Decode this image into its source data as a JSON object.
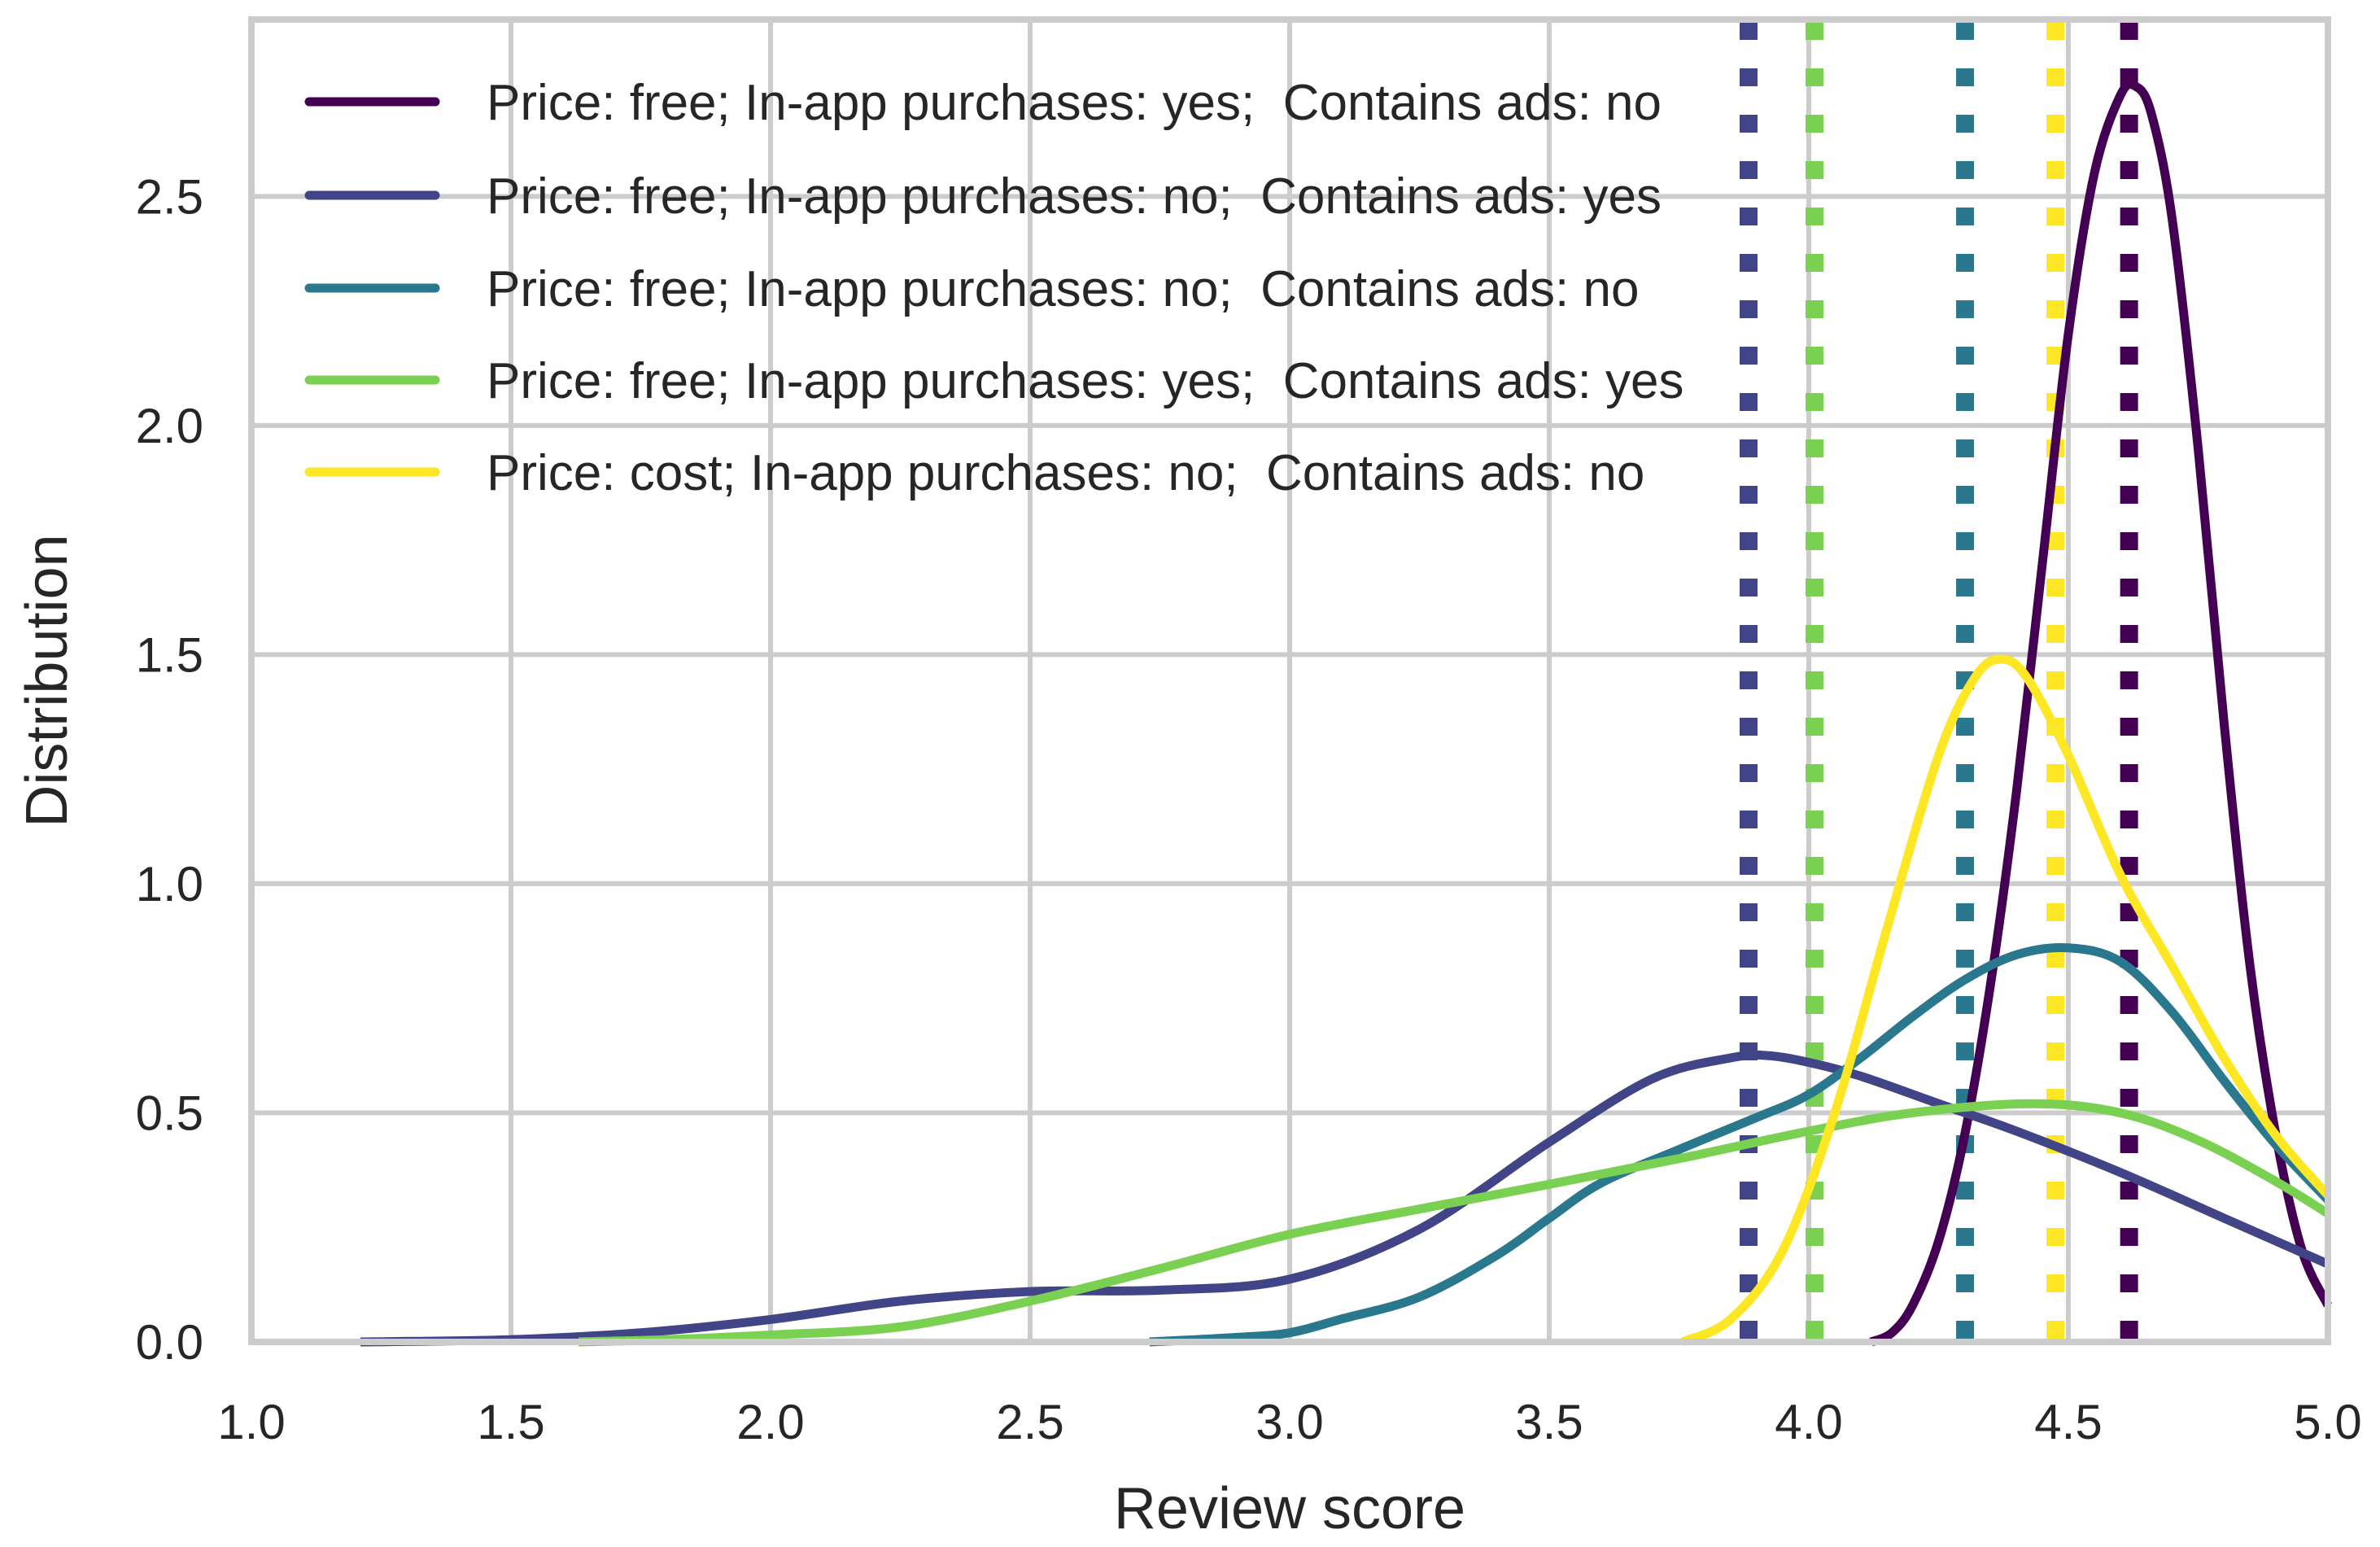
{
  "chart_data": {
    "type": "line",
    "title": "",
    "xlabel": "Review score",
    "ylabel": "Distribution",
    "xlim": [
      1.0,
      5.0
    ],
    "ylim": [
      0.0,
      2.886
    ],
    "xticks": [
      1.0,
      1.5,
      2.0,
      2.5,
      3.0,
      3.5,
      4.0,
      4.5,
      5.0
    ],
    "xtick_labels": [
      "1.0",
      "1.5",
      "2.0",
      "2.5",
      "3.0",
      "3.5",
      "4.0",
      "4.5",
      "5.0"
    ],
    "yticks": [
      0.0,
      0.5,
      1.0,
      1.5,
      2.0,
      2.5
    ],
    "ytick_labels": [
      "0.0",
      "0.5",
      "1.0",
      "1.5",
      "2.0",
      "2.5"
    ],
    "grid": true,
    "legend_position": "upper left",
    "series": [
      {
        "name": "Price: free; In-app purchases: yes;  Contains ads: no",
        "color": "#440154",
        "mean_line": 4.617,
        "points": [
          [
            4.12,
            0.0
          ],
          [
            4.16,
            0.02
          ],
          [
            4.2,
            0.08
          ],
          [
            4.25,
            0.22
          ],
          [
            4.3,
            0.45
          ],
          [
            4.35,
            0.78
          ],
          [
            4.4,
            1.2
          ],
          [
            4.45,
            1.7
          ],
          [
            4.5,
            2.2
          ],
          [
            4.55,
            2.55
          ],
          [
            4.6,
            2.72
          ],
          [
            4.63,
            2.74
          ],
          [
            4.66,
            2.68
          ],
          [
            4.7,
            2.45
          ],
          [
            4.75,
            1.95
          ],
          [
            4.8,
            1.35
          ],
          [
            4.85,
            0.82
          ],
          [
            4.9,
            0.45
          ],
          [
            4.95,
            0.2
          ],
          [
            5.0,
            0.08
          ]
        ]
      },
      {
        "name": "Price: free; In-app purchases: no;  Contains ads: yes",
        "color": "#414487",
        "mean_line": 3.884,
        "points": [
          [
            1.21,
            0.0
          ],
          [
            1.5,
            0.005
          ],
          [
            1.75,
            0.02
          ],
          [
            2.0,
            0.049
          ],
          [
            2.25,
            0.089
          ],
          [
            2.5,
            0.11
          ],
          [
            2.75,
            0.113
          ],
          [
            3.0,
            0.137
          ],
          [
            3.25,
            0.246
          ],
          [
            3.5,
            0.436
          ],
          [
            3.7,
            0.575
          ],
          [
            3.85,
            0.62
          ],
          [
            3.92,
            0.625
          ],
          [
            4.0,
            0.61
          ],
          [
            4.1,
            0.58
          ],
          [
            4.25,
            0.52
          ],
          [
            4.4,
            0.46
          ],
          [
            4.6,
            0.37
          ],
          [
            4.8,
            0.27
          ],
          [
            5.0,
            0.17
          ]
        ]
      },
      {
        "name": "Price: free; In-app purchases: no;  Contains ads: no",
        "color": "#2a788e",
        "mean_line": 4.301,
        "points": [
          [
            2.73,
            0.0
          ],
          [
            2.9,
            0.01
          ],
          [
            3.0,
            0.02
          ],
          [
            3.1,
            0.05
          ],
          [
            3.25,
            0.098
          ],
          [
            3.4,
            0.19
          ],
          [
            3.5,
            0.27
          ],
          [
            3.6,
            0.347
          ],
          [
            3.75,
            0.42
          ],
          [
            3.9,
            0.49
          ],
          [
            4.0,
            0.54
          ],
          [
            4.1,
            0.62
          ],
          [
            4.2,
            0.71
          ],
          [
            4.3,
            0.79
          ],
          [
            4.4,
            0.845
          ],
          [
            4.5,
            0.86
          ],
          [
            4.6,
            0.83
          ],
          [
            4.7,
            0.72
          ],
          [
            4.8,
            0.57
          ],
          [
            4.9,
            0.43
          ],
          [
            5.0,
            0.31
          ]
        ]
      },
      {
        "name": "Price: free; In-app purchases: yes;  Contains ads: yes",
        "color": "#7ad151",
        "mean_line": 4.011,
        "points": [
          [
            1.63,
            0.0
          ],
          [
            1.8,
            0.005
          ],
          [
            2.0,
            0.015
          ],
          [
            2.25,
            0.033
          ],
          [
            2.5,
            0.089
          ],
          [
            2.75,
            0.16
          ],
          [
            3.0,
            0.235
          ],
          [
            3.25,
            0.29
          ],
          [
            3.5,
            0.344
          ],
          [
            3.75,
            0.4
          ],
          [
            4.0,
            0.46
          ],
          [
            4.2,
            0.5
          ],
          [
            4.43,
            0.52
          ],
          [
            4.6,
            0.5
          ],
          [
            4.75,
            0.44
          ],
          [
            4.9,
            0.35
          ],
          [
            5.0,
            0.28
          ]
        ]
      },
      {
        "name": "Price: cost; In-app purchases: no;  Contains ads: no",
        "color": "#fde725",
        "mean_line": 4.475,
        "points": [
          [
            3.757,
            0.0
          ],
          [
            3.85,
            0.05
          ],
          [
            3.95,
            0.2
          ],
          [
            4.05,
            0.5
          ],
          [
            4.15,
            0.9
          ],
          [
            4.25,
            1.28
          ],
          [
            4.32,
            1.45
          ],
          [
            4.37,
            1.49
          ],
          [
            4.42,
            1.45
          ],
          [
            4.5,
            1.28
          ],
          [
            4.6,
            1.02
          ],
          [
            4.7,
            0.82
          ],
          [
            4.8,
            0.62
          ],
          [
            4.9,
            0.45
          ],
          [
            5.0,
            0.32
          ]
        ]
      }
    ]
  },
  "axes": {
    "xlabel": "Review score",
    "ylabel": "Distribution"
  }
}
